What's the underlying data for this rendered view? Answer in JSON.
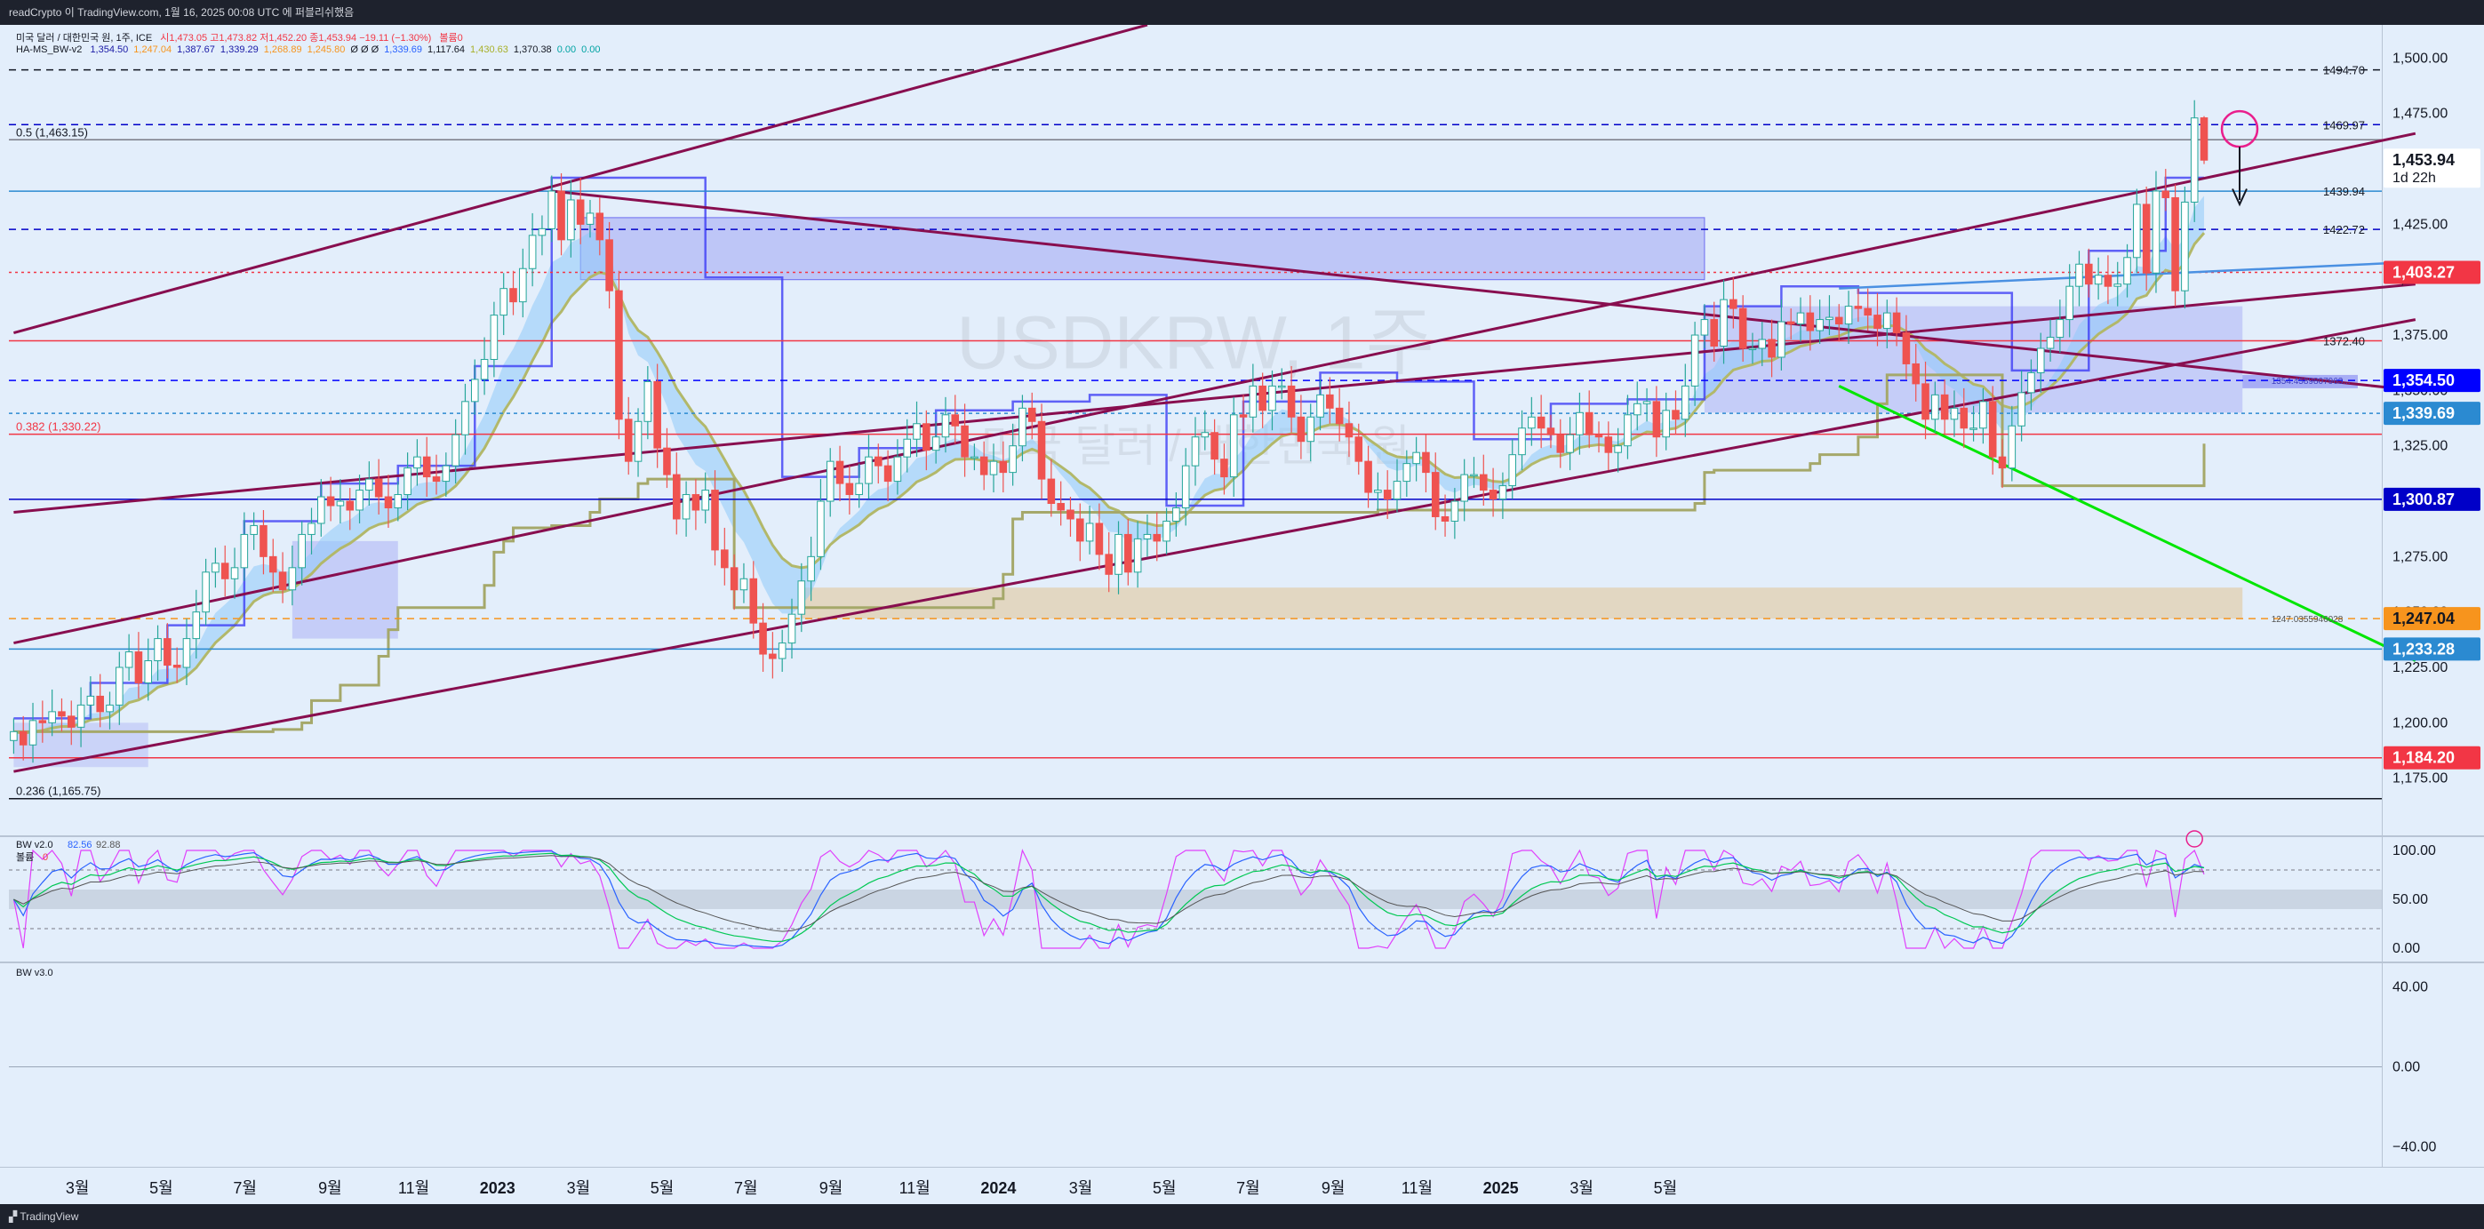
{
  "header": {
    "caption": "readCrypto 이 TradingView.com, 1월 16, 2025 00:08 UTC 에 퍼블리쉬했음"
  },
  "footer": {
    "brand": "TradingView"
  },
  "legend": {
    "line1": {
      "symbol": "미국 달러 / 대한민국 원, 1주, ICE",
      "ohlc": "시1,473.05 고1,473.82 저1,452.20 종1,453.94 −19.11 (−1.30%)",
      "extra": "볼륨0"
    },
    "line2": {
      "name": "HA-MS_BW-v2",
      "values": [
        {
          "text": "1,354.50",
          "color": "#1a1aa6"
        },
        {
          "text": "1,247.04",
          "color": "#f7941d"
        },
        {
          "text": "1,387.67",
          "color": "#1a1aa6"
        },
        {
          "text": "1,339.29",
          "color": "#1a1aa6"
        },
        {
          "text": "1,268.89",
          "color": "#f7941d"
        },
        {
          "text": "1,245.80",
          "color": "#f7941d"
        },
        {
          "text": "Ø Ø Ø",
          "color": "#131722"
        },
        {
          "text": "1,339.69",
          "color": "#2962ff"
        },
        {
          "text": "1,117.64",
          "color": "#131722"
        },
        {
          "text": "1,430.63",
          "color": "#a8b02a"
        },
        {
          "text": "1,370.38",
          "color": "#131722"
        },
        {
          "text": "0.00",
          "color": "#00a3a3"
        },
        {
          "text": "0.00",
          "color": "#00a3a3"
        }
      ]
    }
  },
  "watermark": {
    "symbol": "USDKRW, 1주",
    "name": "미국 달러 / 대한민국 원"
  },
  "price_axis": {
    "ticks": [
      "1,500.00",
      "1,475.00",
      "1,450.00",
      "1,425.00",
      "1,400.00",
      "1,375.00",
      "1,350.00",
      "1,325.00",
      "1,300.00",
      "1,275.00",
      "1,250.00",
      "1,225.00",
      "1,200.00",
      "1,175.00"
    ],
    "badges": [
      {
        "text": "1,453.94",
        "sub": "1d 22h",
        "bg": "#ffffff",
        "fg": "#131722",
        "price": 1453.94
      },
      {
        "text": "1,403.27",
        "bg": "#f23645",
        "fg": "#ffffff",
        "price": 1403.27
      },
      {
        "text": "1,354.50",
        "bg": "#0000ff",
        "fg": "#ffffff",
        "price": 1354.5
      },
      {
        "text": "1,339.69",
        "bg": "#2b8ad1",
        "fg": "#ffffff",
        "price": 1339.69
      },
      {
        "text": "1,300.87",
        "bg": "#0000c8",
        "fg": "#ffffff",
        "price": 1300.87
      },
      {
        "text": "1,247.04",
        "bg": "#f7941d",
        "fg": "#131722",
        "price": 1247.04
      },
      {
        "text": "1,233.28",
        "bg": "#2b8ad1",
        "fg": "#ffffff",
        "price": 1233.28
      },
      {
        "text": "1,184.20",
        "bg": "#f23645",
        "fg": "#ffffff",
        "price": 1184.2
      }
    ],
    "line_labels": [
      {
        "text": "1494.70",
        "price": 1494.7
      },
      {
        "text": "1469.97",
        "price": 1469.97
      },
      {
        "text": "1439.94",
        "price": 1439.94
      },
      {
        "text": "1422.72",
        "price": 1422.72
      },
      {
        "text": "1372.40",
        "price": 1372.4
      }
    ]
  },
  "fib_labels": [
    {
      "text": "0.5 (1,463.15)",
      "price": 1463.15,
      "color": "#131722"
    },
    {
      "text": "0.382 (1,330.22)",
      "price": 1330.22,
      "color": "#f23645"
    },
    {
      "text": "0.236 (1,165.75)",
      "price": 1165.75,
      "color": "#131722"
    }
  ],
  "box_labels": {
    "blue_box": "1354.4589807963...",
    "orange_box": "1247.0355946028"
  },
  "pane2": {
    "title": "BW v2.0",
    "v1": "82.56",
    "v2": "92.88",
    "sub": "볼륨",
    "sub_val": "0",
    "ticks": [
      "100.00",
      "50.00",
      "0.00"
    ]
  },
  "pane3": {
    "title": "BW v3.0",
    "ticks": [
      "40.00",
      "0.00",
      "−40.00"
    ]
  },
  "time_axis": {
    "labels": [
      "3월",
      "5월",
      "7월",
      "9월",
      "11월",
      "2023",
      "3월",
      "5월",
      "7월",
      "9월",
      "11월",
      "2024",
      "3월",
      "5월",
      "7월",
      "9월",
      "11월",
      "2025",
      "3월",
      "5월"
    ],
    "bold": [
      "2023",
      "2024",
      "2025"
    ]
  },
  "colors": {
    "up": "#26a69a",
    "down": "#ef5350",
    "purple_line": "#880e4f",
    "cloud_blue": "#90caf9",
    "cloud_red": "#e57373",
    "olive": "#a5a86a",
    "blue_step": "#3d3df5",
    "orange": "#f7941d",
    "green": "#00e600"
  },
  "chart_data": {
    "type": "candlestick",
    "symbol": "USDKRW",
    "interval": "1주",
    "ylim": [
      1150,
      1515
    ],
    "x_start": "2022-01-10",
    "x_end": "2025-05-26",
    "last": {
      "open": 1473.05,
      "high": 1473.82,
      "low": 1452.2,
      "close": 1453.94,
      "change": -19.11,
      "change_pct": -1.3
    },
    "close_series": [
      1196,
      1190,
      1201,
      1200,
      1205,
      1203,
      1198,
      1208,
      1212,
      1205,
      1208,
      1225,
      1232,
      1218,
      1228,
      1238,
      1226,
      1225,
      1238,
      1250,
      1268,
      1272,
      1265,
      1270,
      1285,
      1289,
      1275,
      1268,
      1260,
      1270,
      1285,
      1290,
      1302,
      1298,
      1300,
      1296,
      1305,
      1310,
      1302,
      1297,
      1303,
      1315,
      1320,
      1311,
      1309,
      1316,
      1330,
      1345,
      1355,
      1364,
      1384,
      1396,
      1390,
      1405,
      1420,
      1423,
      1440,
      1418,
      1436,
      1425,
      1430,
      1418,
      1395,
      1337,
      1318,
      1336,
      1354,
      1324,
      1312,
      1292,
      1303,
      1296,
      1305,
      1278,
      1270,
      1260,
      1265,
      1245,
      1231,
      1229,
      1236,
      1249,
      1264,
      1275,
      1300,
      1318,
      1308,
      1303,
      1308,
      1320,
      1316,
      1309,
      1320,
      1328,
      1335,
      1323,
      1329,
      1339,
      1334,
      1320,
      1320,
      1312,
      1318,
      1313,
      1325,
      1342,
      1336,
      1310,
      1299,
      1296,
      1292,
      1282,
      1290,
      1276,
      1267,
      1285,
      1268,
      1283,
      1285,
      1282,
      1291,
      1297,
      1316,
      1329,
      1331,
      1319,
      1311,
      1339,
      1338,
      1352,
      1341,
      1352,
      1352,
      1338,
      1327,
      1338,
      1348,
      1342,
      1335,
      1329,
      1318,
      1304,
      1305,
      1301,
      1309,
      1317,
      1322,
      1313,
      1293,
      1291,
      1300,
      1312,
      1312,
      1305,
      1301,
      1307,
      1321,
      1333,
      1338,
      1333,
      1330,
      1322,
      1330,
      1340,
      1330,
      1329,
      1322,
      1325,
      1339,
      1344,
      1345,
      1329,
      1341,
      1337,
      1352,
      1375,
      1382,
      1370,
      1391,
      1387,
      1369,
      1369,
      1373,
      1365,
      1381,
      1380,
      1385,
      1377,
      1382,
      1383,
      1380,
      1388,
      1387,
      1384,
      1378,
      1385,
      1376,
      1362,
      1353,
      1337,
      1348,
      1337,
      1342,
      1333,
      1333,
      1345,
      1320,
      1315,
      1334,
      1349,
      1358,
      1369,
      1374,
      1382,
      1397,
      1407,
      1398,
      1402,
      1397,
      1398,
      1410,
      1434,
      1403,
      1440,
      1437,
      1395,
      1435,
      1473,
      1453.94
    ],
    "horizontal_levels": [
      1494.7,
      1469.97,
      1463.15,
      1439.94,
      1422.72,
      1403.27,
      1372.4,
      1354.5,
      1339.69,
      1330.22,
      1300.87,
      1247.04,
      1233.28,
      1184.2,
      1165.75
    ],
    "oscillator_pane": {
      "name": "BW v2.0",
      "values": [
        82.56,
        92.88
      ],
      "ylim": [
        -10,
        110
      ]
    },
    "oscillator_pane_2": {
      "name": "BW v3.0",
      "ylim": [
        -50,
        50
      ]
    }
  }
}
